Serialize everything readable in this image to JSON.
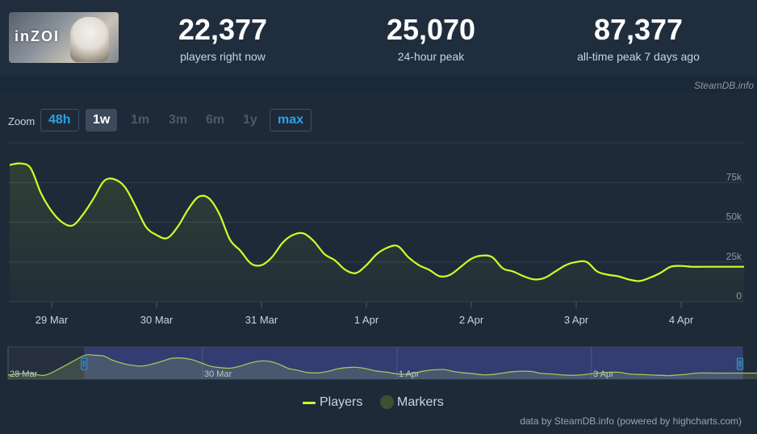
{
  "header": {
    "game_logo_text": "inZOI",
    "stats": [
      {
        "value": "22,377",
        "label": "players right now"
      },
      {
        "value": "25,070",
        "label": "24-hour peak"
      },
      {
        "value": "87,377",
        "label": "all-time peak 7 days ago"
      }
    ],
    "credit": "SteamDB.info"
  },
  "zoom": {
    "label": "Zoom",
    "buttons": [
      "48h",
      "1w",
      "1m",
      "3m",
      "6m",
      "1y",
      "max"
    ]
  },
  "legend": {
    "players": "Players",
    "markers": "Markers"
  },
  "footer_credit": "data by SteamDB.info (powered by highcharts.com)",
  "colors": {
    "series": "#d0ff27",
    "accent": "#2ba1e6",
    "navigator_band": "#36407a"
  },
  "chart_data": {
    "type": "area",
    "title": "",
    "xlabel": "",
    "ylabel": "",
    "x_ticks": [
      "29 Mar",
      "30 Mar",
      "31 Mar",
      "1 Apr",
      "2 Apr",
      "3 Apr",
      "4 Apr"
    ],
    "y_ticks": [
      "0",
      "25k",
      "50k",
      "75k"
    ],
    "ylim": [
      0,
      100000
    ],
    "grid": true,
    "legend_position": "bottom",
    "series": [
      {
        "name": "Players",
        "x": [
          -0.4,
          -0.3,
          -0.2,
          -0.1,
          0,
          0.1,
          0.2,
          0.3,
          0.4,
          0.5,
          0.6,
          0.7,
          0.8,
          0.9,
          1,
          1.1,
          1.2,
          1.3,
          1.4,
          1.5,
          1.6,
          1.7,
          1.8,
          1.9,
          2,
          2.1,
          2.2,
          2.3,
          2.4,
          2.5,
          2.6,
          2.7,
          2.8,
          2.9,
          3,
          3.1,
          3.2,
          3.3,
          3.4,
          3.5,
          3.6,
          3.7,
          3.8,
          3.9,
          4,
          4.1,
          4.2,
          4.3,
          4.4,
          4.5,
          4.6,
          4.7,
          4.8,
          4.9,
          5,
          5.1,
          5.2,
          5.3,
          5.4,
          5.5,
          5.6,
          5.7,
          5.8,
          5.9,
          6,
          6.1,
          6.2,
          6.3,
          6.4,
          6.5,
          6.6
        ],
        "values": [
          86000,
          87000,
          84000,
          68000,
          57000,
          50000,
          48000,
          55000,
          65000,
          76000,
          77000,
          72000,
          60000,
          47000,
          42000,
          40000,
          47000,
          58000,
          66000,
          65000,
          55000,
          39000,
          32000,
          24000,
          23000,
          28000,
          37000,
          42000,
          43000,
          38000,
          30000,
          26000,
          20000,
          18000,
          23000,
          30000,
          34000,
          35000,
          28000,
          23000,
          20000,
          16000,
          17000,
          22000,
          27000,
          29000,
          28000,
          21000,
          19000,
          16000,
          14000,
          15000,
          19000,
          23000,
          25000,
          25000,
          19000,
          17000,
          16000,
          14000,
          13000,
          15000,
          18000,
          22000,
          22500,
          22000,
          22000,
          22000,
          22000,
          22000,
          22000
        ]
      },
      {
        "name": "Markers",
        "x": [],
        "values": []
      }
    ],
    "navigator": {
      "x_ticks": [
        "28 Mar",
        "30 Mar",
        "1 Apr",
        "3 Apr"
      ],
      "selected_range": [
        -0.4,
        6.6
      ]
    }
  }
}
